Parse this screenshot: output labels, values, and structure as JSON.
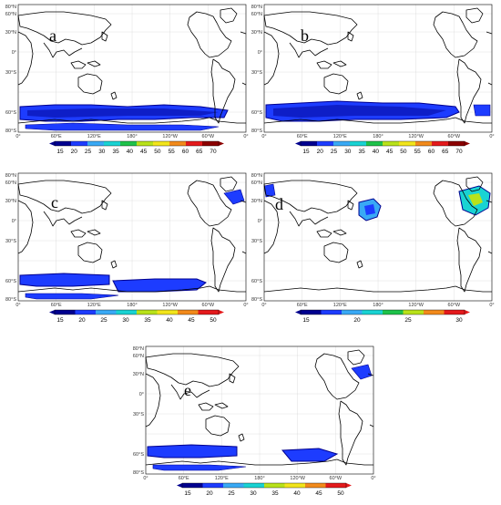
{
  "colors": {
    "dark_blue": "#00008f",
    "blue": "#1d3cff",
    "sky_blue": "#39a9f5",
    "cyan": "#19d3d3",
    "green": "#1ec24a",
    "yellow_green": "#b8e21a",
    "yellow": "#f2e51b",
    "orange": "#f28a1b",
    "red": "#e41a1c",
    "dark_red": "#8b0000"
  },
  "axes": {
    "lat_labels": [
      "80°N",
      "60°N",
      "30°N",
      "0°",
      "30°S",
      "60°S",
      "80°S"
    ],
    "lon_labels": [
      "0°",
      "60°E",
      "120°E",
      "180°",
      "120°W",
      "60°W",
      "0°"
    ]
  },
  "panels": [
    {
      "label": "a",
      "colorbar": {
        "ticks": [
          "15",
          "20",
          "25",
          "30",
          "35",
          "40",
          "45",
          "50",
          "55",
          "60",
          "65",
          "70"
        ],
        "colors": [
          "#00008f",
          "#1d3cff",
          "#39a9f5",
          "#19d3d3",
          "#1ec24a",
          "#b8e21a",
          "#f2e51b",
          "#f28a1b",
          "#e41a1c",
          "#8b0000"
        ]
      }
    },
    {
      "label": "b",
      "colorbar": {
        "ticks": [
          "15",
          "20",
          "25",
          "30",
          "35",
          "40",
          "45",
          "50",
          "55",
          "60",
          "65",
          "70"
        ],
        "colors": [
          "#00008f",
          "#1d3cff",
          "#39a9f5",
          "#19d3d3",
          "#1ec24a",
          "#b8e21a",
          "#f2e51b",
          "#f28a1b",
          "#e41a1c",
          "#8b0000"
        ]
      }
    },
    {
      "label": "c",
      "colorbar": {
        "ticks": [
          "15",
          "20",
          "25",
          "30",
          "35",
          "40",
          "45",
          "50"
        ],
        "colors": [
          "#00008f",
          "#1d3cff",
          "#39a9f5",
          "#19d3d3",
          "#b8e21a",
          "#f2e51b",
          "#f28a1b",
          "#e41a1c"
        ]
      }
    },
    {
      "label": "d",
      "colorbar": {
        "ticks": [
          "15",
          "20",
          "25",
          "30"
        ],
        "colors": [
          "#00008f",
          "#1d3cff",
          "#39a9f5",
          "#19d3d3",
          "#1ec24a",
          "#b8e21a",
          "#f28a1b",
          "#e41a1c"
        ]
      }
    },
    {
      "label": "e",
      "colorbar": {
        "ticks": [
          "15",
          "20",
          "25",
          "30",
          "35",
          "40",
          "45",
          "50"
        ],
        "colors": [
          "#00008f",
          "#1d3cff",
          "#39a9f5",
          "#19d3d3",
          "#b8e21a",
          "#f2e51b",
          "#f28a1b",
          "#e41a1c"
        ]
      }
    }
  ]
}
